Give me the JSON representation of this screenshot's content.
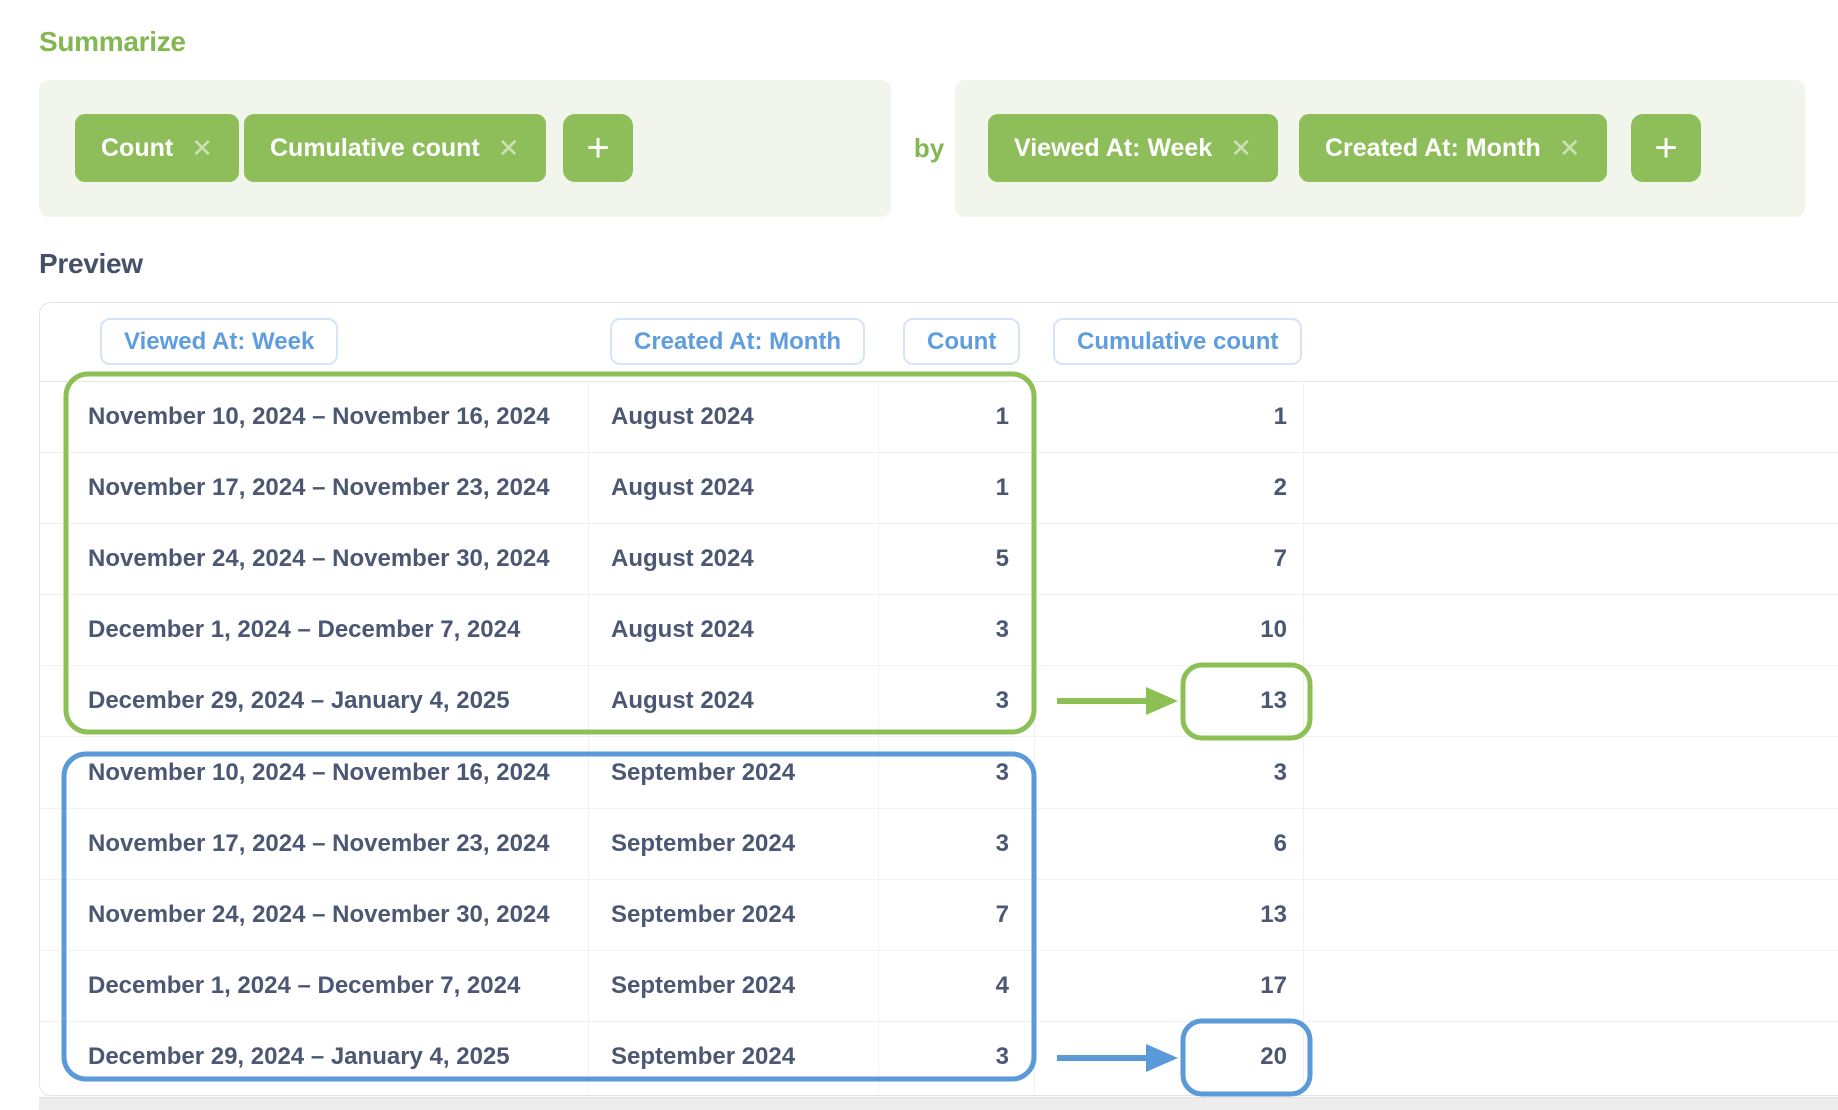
{
  "summarize": {
    "title": "Summarize",
    "metrics": [
      {
        "label": "Count"
      },
      {
        "label": "Cumulative count"
      }
    ],
    "by_label": "by",
    "breakouts": [
      {
        "label": "Viewed At: Week"
      },
      {
        "label": "Created At: Month"
      }
    ]
  },
  "icons": {
    "remove": "✕",
    "add": "+"
  },
  "preview": {
    "title": "Preview",
    "columns": [
      "Viewed At: Week",
      "Created At: Month",
      "Count",
      "Cumulative count"
    ],
    "rows": [
      {
        "viewed_at": "November 10, 2024 – November 16, 2024",
        "created_at": "August 2024",
        "count": "1",
        "cumulative": "1"
      },
      {
        "viewed_at": "November 17, 2024 – November 23, 2024",
        "created_at": "August 2024",
        "count": "1",
        "cumulative": "2"
      },
      {
        "viewed_at": "November 24, 2024 – November 30, 2024",
        "created_at": "August 2024",
        "count": "5",
        "cumulative": "7"
      },
      {
        "viewed_at": "December 1, 2024 – December 7, 2024",
        "created_at": "August 2024",
        "count": "3",
        "cumulative": "10"
      },
      {
        "viewed_at": "December 29, 2024 – January 4, 2025",
        "created_at": "August 2024",
        "count": "3",
        "cumulative": "13"
      },
      {
        "viewed_at": "November 10, 2024 – November 16, 2024",
        "created_at": "September 2024",
        "count": "3",
        "cumulative": "3"
      },
      {
        "viewed_at": "November 17, 2024 – November 23, 2024",
        "created_at": "September 2024",
        "count": "3",
        "cumulative": "6"
      },
      {
        "viewed_at": "November 24, 2024 – November 30, 2024",
        "created_at": "September 2024",
        "count": "7",
        "cumulative": "13"
      },
      {
        "viewed_at": "December 1, 2024 – December 7, 2024",
        "created_at": "September 2024",
        "count": "4",
        "cumulative": "17"
      },
      {
        "viewed_at": "December 29, 2024 – January 4, 2025",
        "created_at": "September 2024",
        "count": "3",
        "cumulative": "20"
      }
    ]
  },
  "annotations": {
    "green_group_rows": [
      0,
      4
    ],
    "blue_group_rows": [
      5,
      9
    ],
    "green_highlight_value": "13",
    "blue_highlight_value": "20"
  },
  "colors": {
    "green_fill": "#8EBE5A",
    "green_text": "#82B751",
    "green_annotation": "#8CC055",
    "panel_bg": "#F2F5EB",
    "blue_header": "#5E9DE0",
    "blue_annotation": "#5B9AD8",
    "body_text": "#4C5773"
  }
}
